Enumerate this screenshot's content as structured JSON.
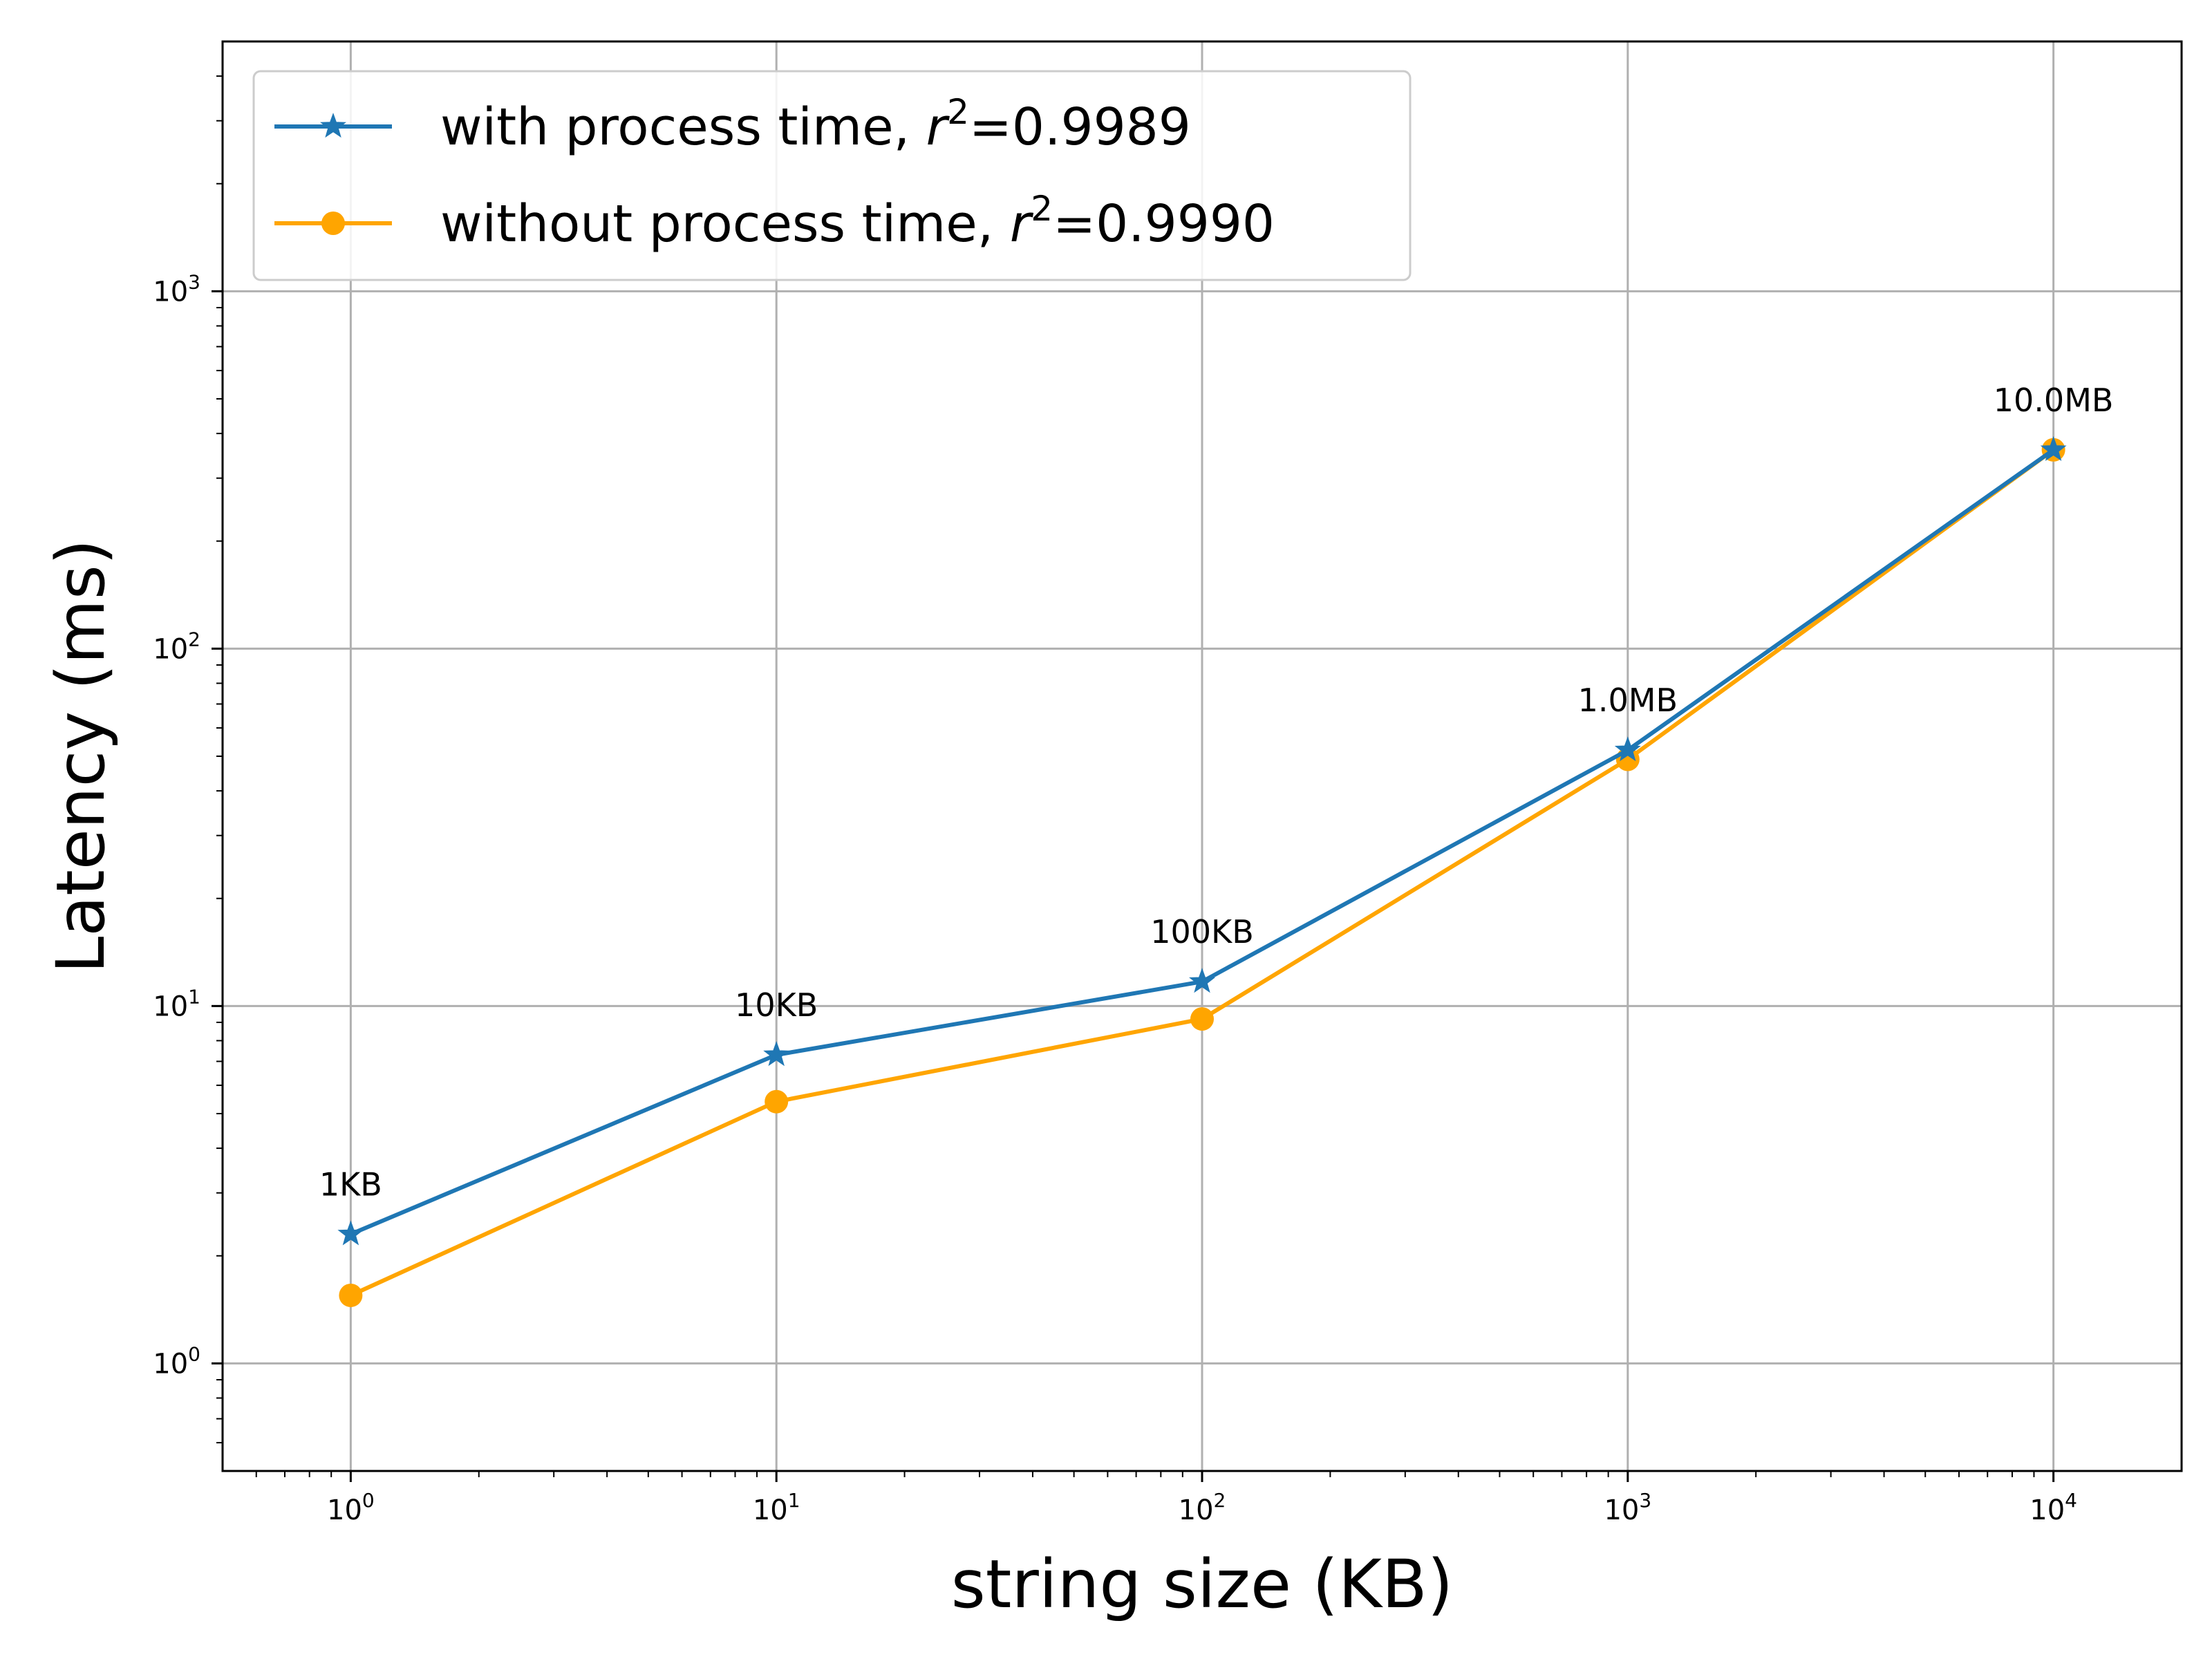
{
  "chart_data": {
    "type": "line",
    "x_scale": "log",
    "y_scale": "log",
    "xlabel": "string size (KB)",
    "ylabel": "Latency (ms)",
    "xlim": [
      0.5,
      20000
    ],
    "ylim": [
      0.5,
      5000
    ],
    "x_ticks": [
      {
        "value": 1,
        "base": "10",
        "exp": "0"
      },
      {
        "value": 10,
        "base": "10",
        "exp": "1"
      },
      {
        "value": 100,
        "base": "10",
        "exp": "2"
      },
      {
        "value": 1000,
        "base": "10",
        "exp": "3"
      },
      {
        "value": 10000,
        "base": "10",
        "exp": "4"
      }
    ],
    "y_ticks": [
      {
        "value": 1,
        "base": "10",
        "exp": "0"
      },
      {
        "value": 10,
        "base": "10",
        "exp": "1"
      },
      {
        "value": 100,
        "base": "10",
        "exp": "2"
      },
      {
        "value": 1000,
        "base": "10",
        "exp": "3"
      }
    ],
    "grid": true,
    "legend_position": "top-left",
    "x": [
      1,
      10,
      100,
      1000,
      10000
    ],
    "point_labels": [
      "1KB",
      "10KB",
      "100KB",
      "1.0MB",
      "10.0MB"
    ],
    "series": [
      {
        "name_prefix": "with process time, ",
        "r_symbol": "r",
        "r_exp": "2",
        "r_value": "=0.9989",
        "color": "#1f77b4",
        "marker": "star",
        "values": [
          2.3,
          7.3,
          11.7,
          52,
          360
        ]
      },
      {
        "name_prefix": "without process time, ",
        "r_symbol": "r",
        "r_exp": "2",
        "r_value": "=0.9990",
        "color": "#ffa500",
        "marker": "circle",
        "values": [
          1.55,
          5.4,
          9.2,
          49,
          360
        ]
      }
    ]
  }
}
